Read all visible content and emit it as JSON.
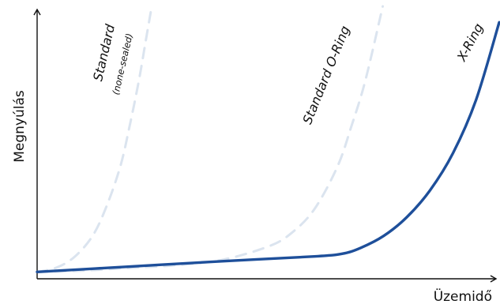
{
  "chart_data": {
    "type": "line",
    "xlabel": "Üzemidő",
    "ylabel": "Megnyúlás",
    "xlim": [
      0,
      100
    ],
    "ylim": [
      0,
      100
    ],
    "grid": false,
    "legend": "none",
    "series": [
      {
        "name": "Standard",
        "subname": "(none-sealed)",
        "style": "dashed",
        "color": "#dbe4ef",
        "x": [
          0,
          4,
          8,
          12,
          15,
          18,
          20,
          22,
          23.5,
          24.8
        ],
        "y": [
          0.5,
          2,
          6,
          14,
          25,
          40,
          55,
          72,
          87,
          100
        ]
      },
      {
        "name": "Standard O-Ring",
        "style": "dashed",
        "color": "#dbe4ef",
        "x": [
          0,
          10,
          20,
          30,
          40,
          50,
          55,
          60,
          65,
          68,
          71,
          74.8
        ],
        "y": [
          0.5,
          1,
          2,
          3,
          5,
          10,
          15,
          24,
          40,
          55,
          72,
          100
        ]
      },
      {
        "name": "X-Ring",
        "style": "solid",
        "color": "#1e4f9a",
        "x": [
          0,
          20,
          40,
          60,
          66,
          70,
          75,
          80,
          85,
          90,
          95,
          100
        ],
        "y": [
          0.5,
          2.5,
          4.5,
          6.3,
          7.3,
          9.5,
          14,
          21,
          31,
          45,
          65,
          94
        ]
      }
    ]
  }
}
